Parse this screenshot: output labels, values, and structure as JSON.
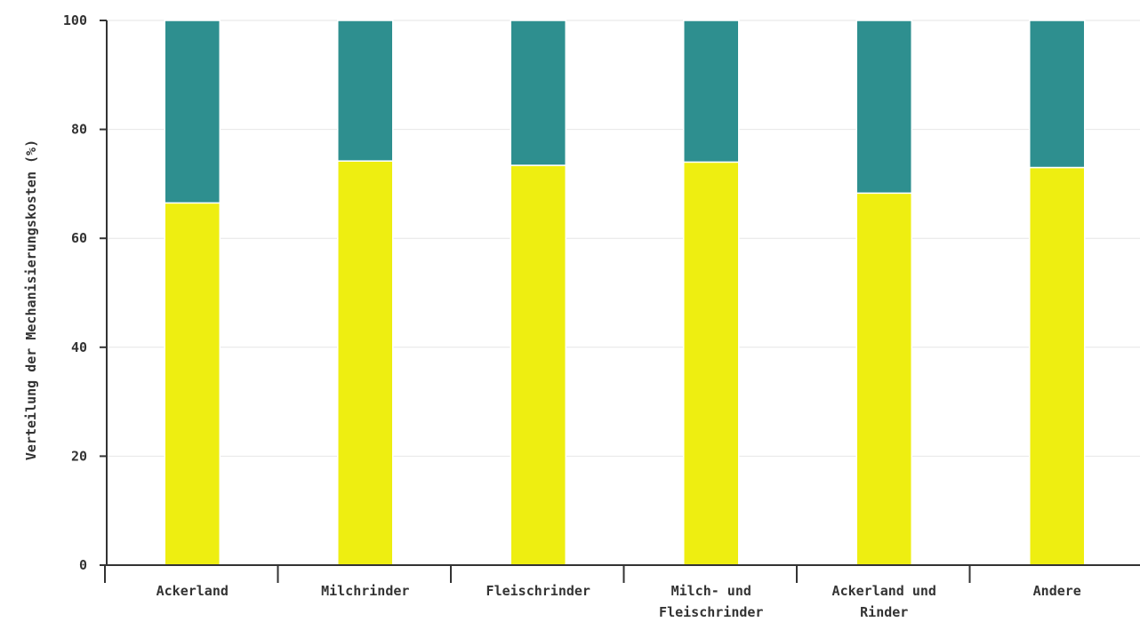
{
  "chart_data": {
    "type": "bar",
    "stacked": true,
    "title": "",
    "xlabel": "",
    "ylabel": "Verteilung der Mechanisierungskosten (%)",
    "ylim": [
      0,
      100
    ],
    "yticks": [
      0,
      20,
      40,
      60,
      80,
      100
    ],
    "grid": "horizontal",
    "categories": [
      [
        "Ackerland"
      ],
      [
        "Milchrinder"
      ],
      [
        "Fleischrinder"
      ],
      [
        "Milch- und",
        "Fleischrinder"
      ],
      [
        "Ackerland und",
        "Rinder"
      ],
      [
        "Andere"
      ]
    ],
    "series": [
      {
        "color": "#eeee11",
        "values": [
          66.5,
          74.2,
          73.4,
          74.0,
          68.3,
          73.0
        ]
      },
      {
        "color": "#2e8f8f",
        "values": [
          33.5,
          25.8,
          26.6,
          26.0,
          31.7,
          27.0
        ]
      }
    ]
  }
}
